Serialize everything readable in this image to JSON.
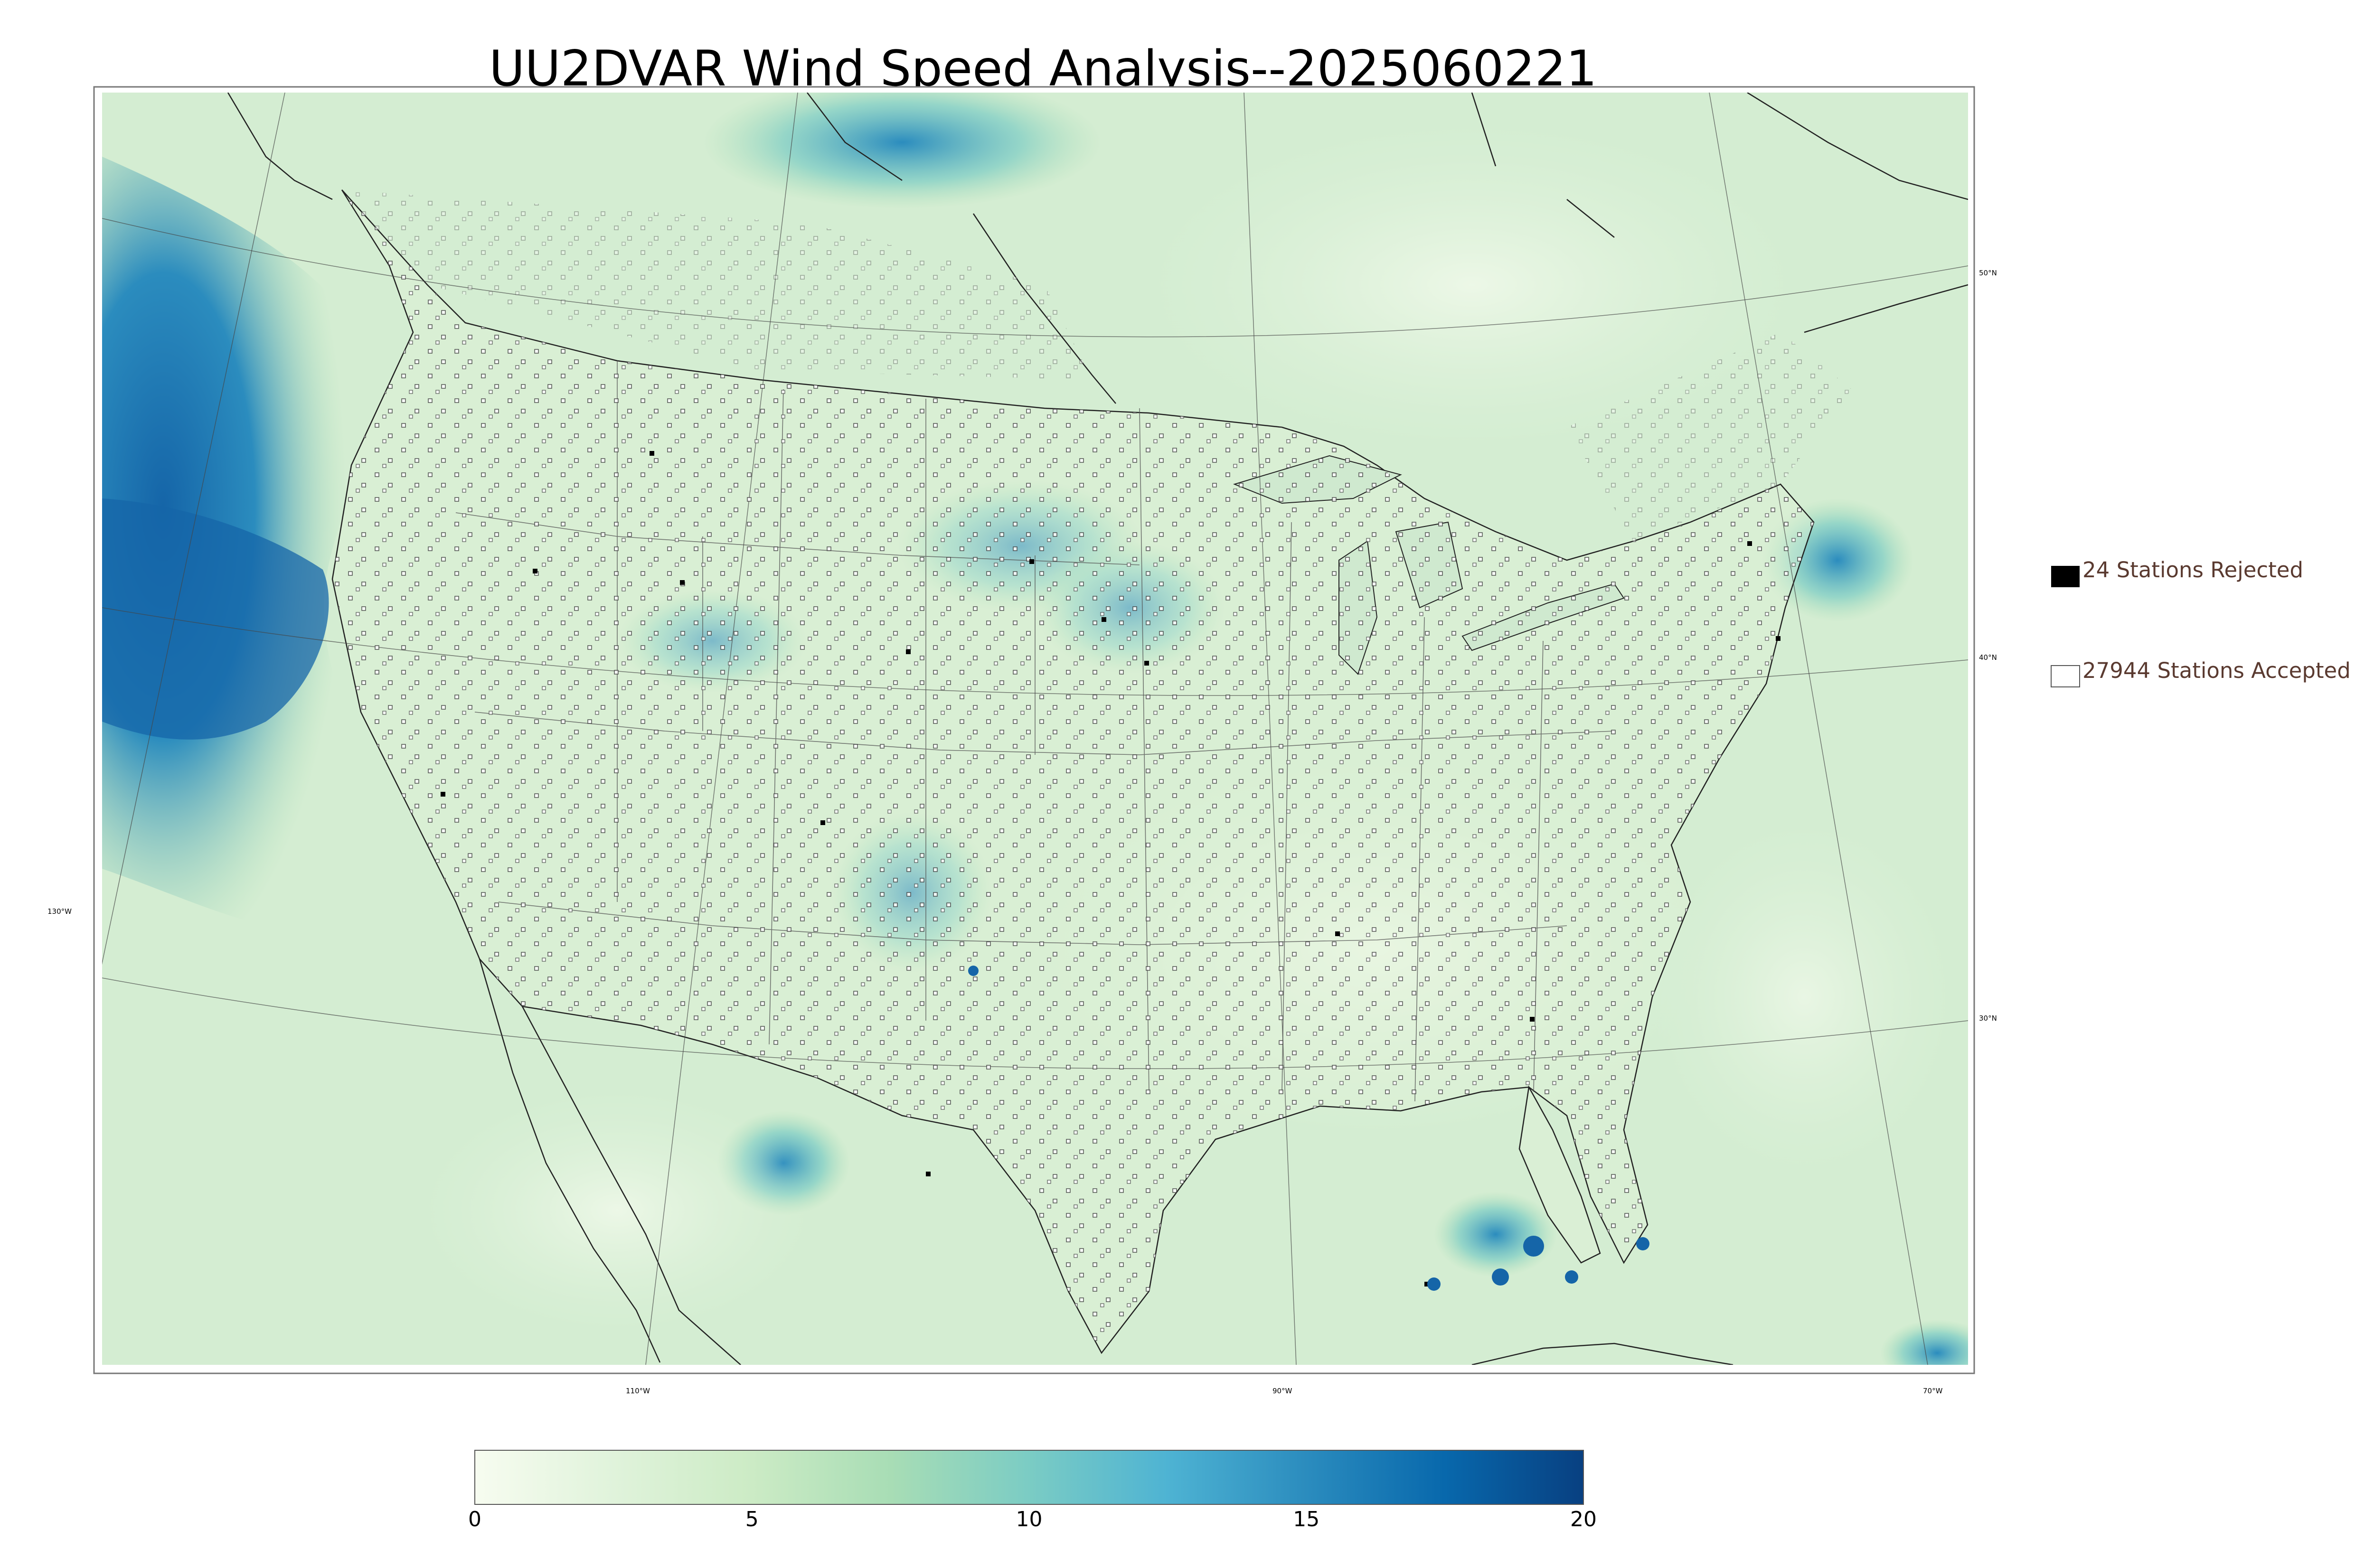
{
  "title": "UU2DVAR Wind Speed Analysis--2025060221",
  "legend": {
    "rejected_label": "24 Stations Rejected",
    "accepted_label": "27944 Stations Accepted",
    "rejected_color": "#000000",
    "accepted_color": "#ffffff"
  },
  "colorbar": {
    "min": 0,
    "max": 20,
    "ticks": [
      "0",
      "5",
      "10",
      "15",
      "20"
    ],
    "colors": [
      "#f7fcf0",
      "#e0f3db",
      "#ccebc5",
      "#a8ddb5",
      "#7bccc4",
      "#4eb3d3",
      "#2b8cbe",
      "#0868ac",
      "#084081"
    ]
  },
  "graticule": {
    "lat_labels": [
      "50°N",
      "40°N",
      "30°N"
    ],
    "lon_labels": [
      "130°W",
      "110°W",
      "90°W",
      "70°W"
    ]
  },
  "map": {
    "ocean_color": "#d8efd8",
    "land_color": "#e6f5e0",
    "strong_wind_color": "#1a6fb5",
    "border_color": "#222222"
  }
}
